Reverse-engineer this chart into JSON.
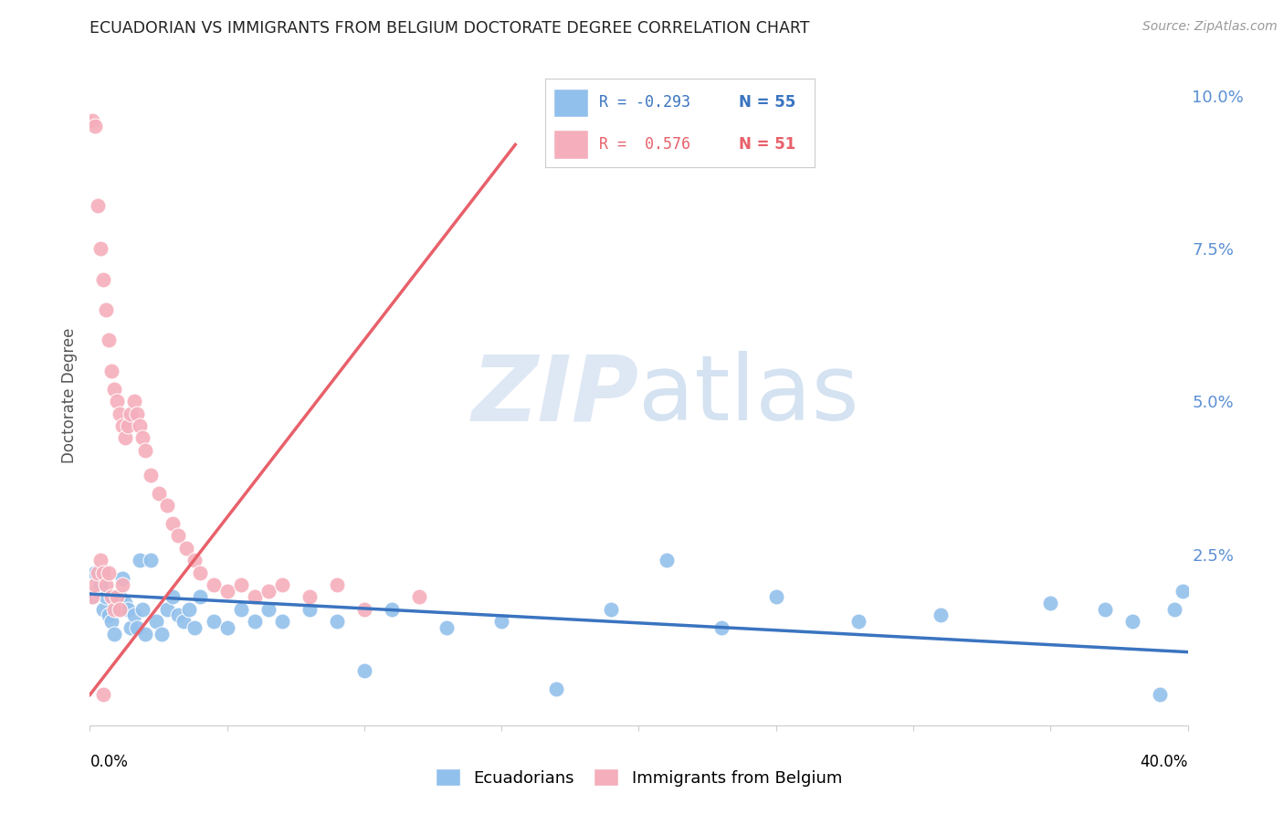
{
  "title": "ECUADORIAN VS IMMIGRANTS FROM BELGIUM DOCTORATE DEGREE CORRELATION CHART",
  "source": "Source: ZipAtlas.com",
  "ylabel": "Doctorate Degree",
  "color_blue": "#92C0EC",
  "color_pink": "#F5AEBB",
  "color_blue_line": "#3A74C0",
  "color_pink_line": "#E8606A",
  "color_right_axis": "#5B8FD4",
  "color_grid": "#DDDDDD",
  "xlim": [
    0.0,
    0.4
  ],
  "ylim": [
    -0.003,
    0.105
  ],
  "blue_x": [
    0.001,
    0.002,
    0.003,
    0.004,
    0.005,
    0.006,
    0.007,
    0.008,
    0.009,
    0.01,
    0.011,
    0.012,
    0.013,
    0.014,
    0.015,
    0.016,
    0.017,
    0.018,
    0.019,
    0.02,
    0.022,
    0.024,
    0.026,
    0.028,
    0.03,
    0.032,
    0.034,
    0.036,
    0.038,
    0.04,
    0.045,
    0.05,
    0.055,
    0.06,
    0.065,
    0.07,
    0.08,
    0.09,
    0.1,
    0.11,
    0.13,
    0.15,
    0.17,
    0.19,
    0.21,
    0.23,
    0.25,
    0.28,
    0.31,
    0.35,
    0.37,
    0.38,
    0.39,
    0.395,
    0.398
  ],
  "blue_y": [
    0.018,
    0.022,
    0.019,
    0.02,
    0.016,
    0.018,
    0.015,
    0.014,
    0.012,
    0.016,
    0.018,
    0.021,
    0.017,
    0.016,
    0.013,
    0.015,
    0.013,
    0.024,
    0.016,
    0.012,
    0.024,
    0.014,
    0.012,
    0.016,
    0.018,
    0.015,
    0.014,
    0.016,
    0.013,
    0.018,
    0.014,
    0.013,
    0.016,
    0.014,
    0.016,
    0.014,
    0.016,
    0.014,
    0.006,
    0.016,
    0.013,
    0.014,
    0.003,
    0.016,
    0.024,
    0.013,
    0.018,
    0.014,
    0.015,
    0.017,
    0.016,
    0.014,
    0.002,
    0.016,
    0.019
  ],
  "pink_x": [
    0.001,
    0.001,
    0.002,
    0.002,
    0.003,
    0.003,
    0.004,
    0.004,
    0.005,
    0.005,
    0.006,
    0.006,
    0.007,
    0.007,
    0.008,
    0.008,
    0.009,
    0.009,
    0.01,
    0.01,
    0.011,
    0.011,
    0.012,
    0.012,
    0.013,
    0.014,
    0.015,
    0.016,
    0.017,
    0.018,
    0.019,
    0.02,
    0.022,
    0.025,
    0.028,
    0.03,
    0.032,
    0.035,
    0.038,
    0.04,
    0.045,
    0.05,
    0.055,
    0.06,
    0.065,
    0.07,
    0.08,
    0.09,
    0.1,
    0.12,
    0.005
  ],
  "pink_y": [
    0.096,
    0.018,
    0.095,
    0.02,
    0.082,
    0.022,
    0.075,
    0.024,
    0.07,
    0.022,
    0.065,
    0.02,
    0.06,
    0.022,
    0.055,
    0.018,
    0.052,
    0.016,
    0.05,
    0.018,
    0.048,
    0.016,
    0.046,
    0.02,
    0.044,
    0.046,
    0.048,
    0.05,
    0.048,
    0.046,
    0.044,
    0.042,
    0.038,
    0.035,
    0.033,
    0.03,
    0.028,
    0.026,
    0.024,
    0.022,
    0.02,
    0.019,
    0.02,
    0.018,
    0.019,
    0.02,
    0.018,
    0.02,
    0.016,
    0.018,
    0.002
  ],
  "blue_line_x": [
    0.0,
    0.4
  ],
  "blue_line_y": [
    0.0185,
    0.009
  ],
  "pink_line_x": [
    0.0,
    0.155
  ],
  "pink_line_y": [
    0.002,
    0.092
  ]
}
